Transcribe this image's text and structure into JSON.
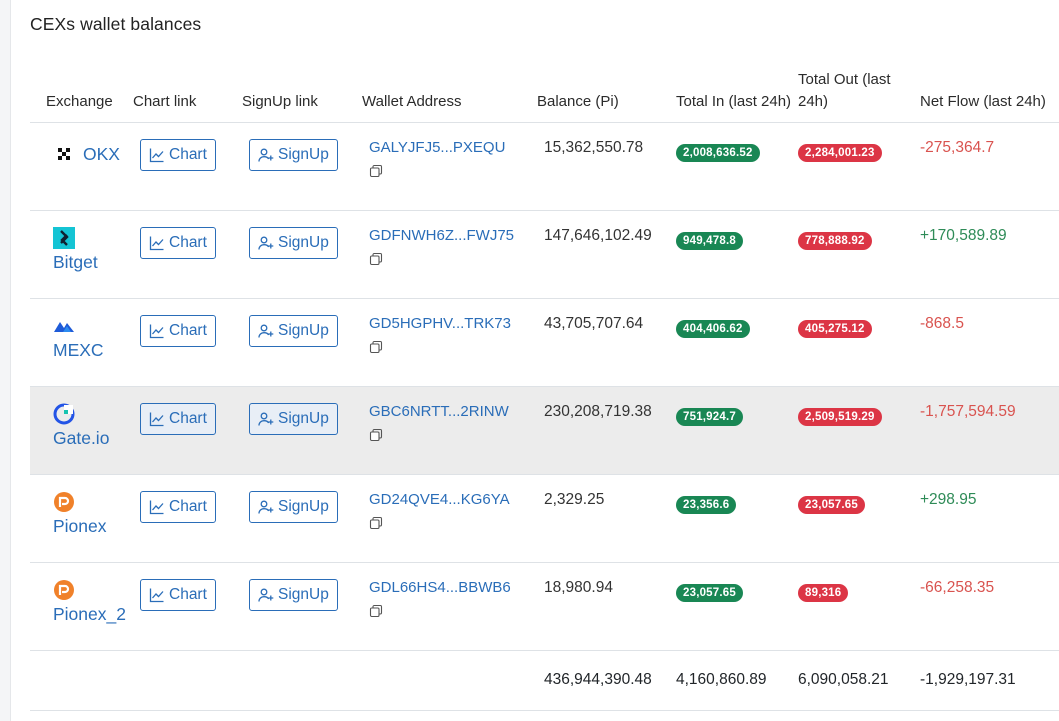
{
  "section_title": "CEXs wallet balances",
  "columns": {
    "exchange": "Exchange",
    "chart_link": "Chart link",
    "signup_link": "SignUp link",
    "wallet_address": "Wallet Address",
    "balance": "Balance (Pi)",
    "total_in": "Total In (last 24h)",
    "total_out": "Total Out (last 24h)",
    "net_flow": "Net Flow (last 24h)"
  },
  "buttons": {
    "chart": "Chart",
    "signup": "SignUp"
  },
  "rows": [
    {
      "exchange": "OKX",
      "logo": "okx-logo",
      "address": "GALYJFJ5...PXEQU",
      "balance": "15,362,550.78",
      "total_in": "2,008,636.52",
      "total_out": "2,284,001.23",
      "net_flow": "-275,364.7",
      "net_sign": "neg"
    },
    {
      "exchange": "Bitget",
      "logo": "bitget-logo",
      "address": "GDFNWH6Z...FWJ75",
      "balance": "147,646,102.49",
      "total_in": "949,478.8",
      "total_out": "778,888.92",
      "net_flow": "+170,589.89",
      "net_sign": "pos"
    },
    {
      "exchange": "MEXC",
      "logo": "mexc-logo",
      "address": "GD5HGPHV...TRK73",
      "balance": "43,705,707.64",
      "total_in": "404,406.62",
      "total_out": "405,275.12",
      "net_flow": "-868.5",
      "net_sign": "neg"
    },
    {
      "exchange": "Gate.io",
      "logo": "gateio-logo",
      "address": "GBC6NRTT...2RINW",
      "balance": "230,208,719.38",
      "total_in": "751,924.7",
      "total_out": "2,509,519.29",
      "net_flow": "-1,757,594.59",
      "net_sign": "neg"
    },
    {
      "exchange": "Pionex",
      "logo": "pionex-logo",
      "address": "GD24QVE4...KG6YA",
      "balance": "2,329.25",
      "total_in": "23,356.6",
      "total_out": "23,057.65",
      "net_flow": "+298.95",
      "net_sign": "pos"
    },
    {
      "exchange": "Pionex_2",
      "logo": "pionex-logo",
      "address": "GDL66HS4...BBWB6",
      "balance": "18,980.94",
      "total_in": "23,057.65",
      "total_out": "89,316",
      "net_flow": "-66,258.35",
      "net_sign": "neg"
    }
  ],
  "totals": {
    "balance": "436,944,390.48",
    "total_in": "4,160,860.89",
    "total_out": "6,090,058.21",
    "net_flow": "-1,929,197.31"
  },
  "colors": {
    "link": "#2a6db8",
    "badge_in": "#198754",
    "badge_out": "#dc3545",
    "net_positive": "#2e8b57",
    "net_negative": "#d9534f",
    "highlight_row": "#ececec"
  }
}
